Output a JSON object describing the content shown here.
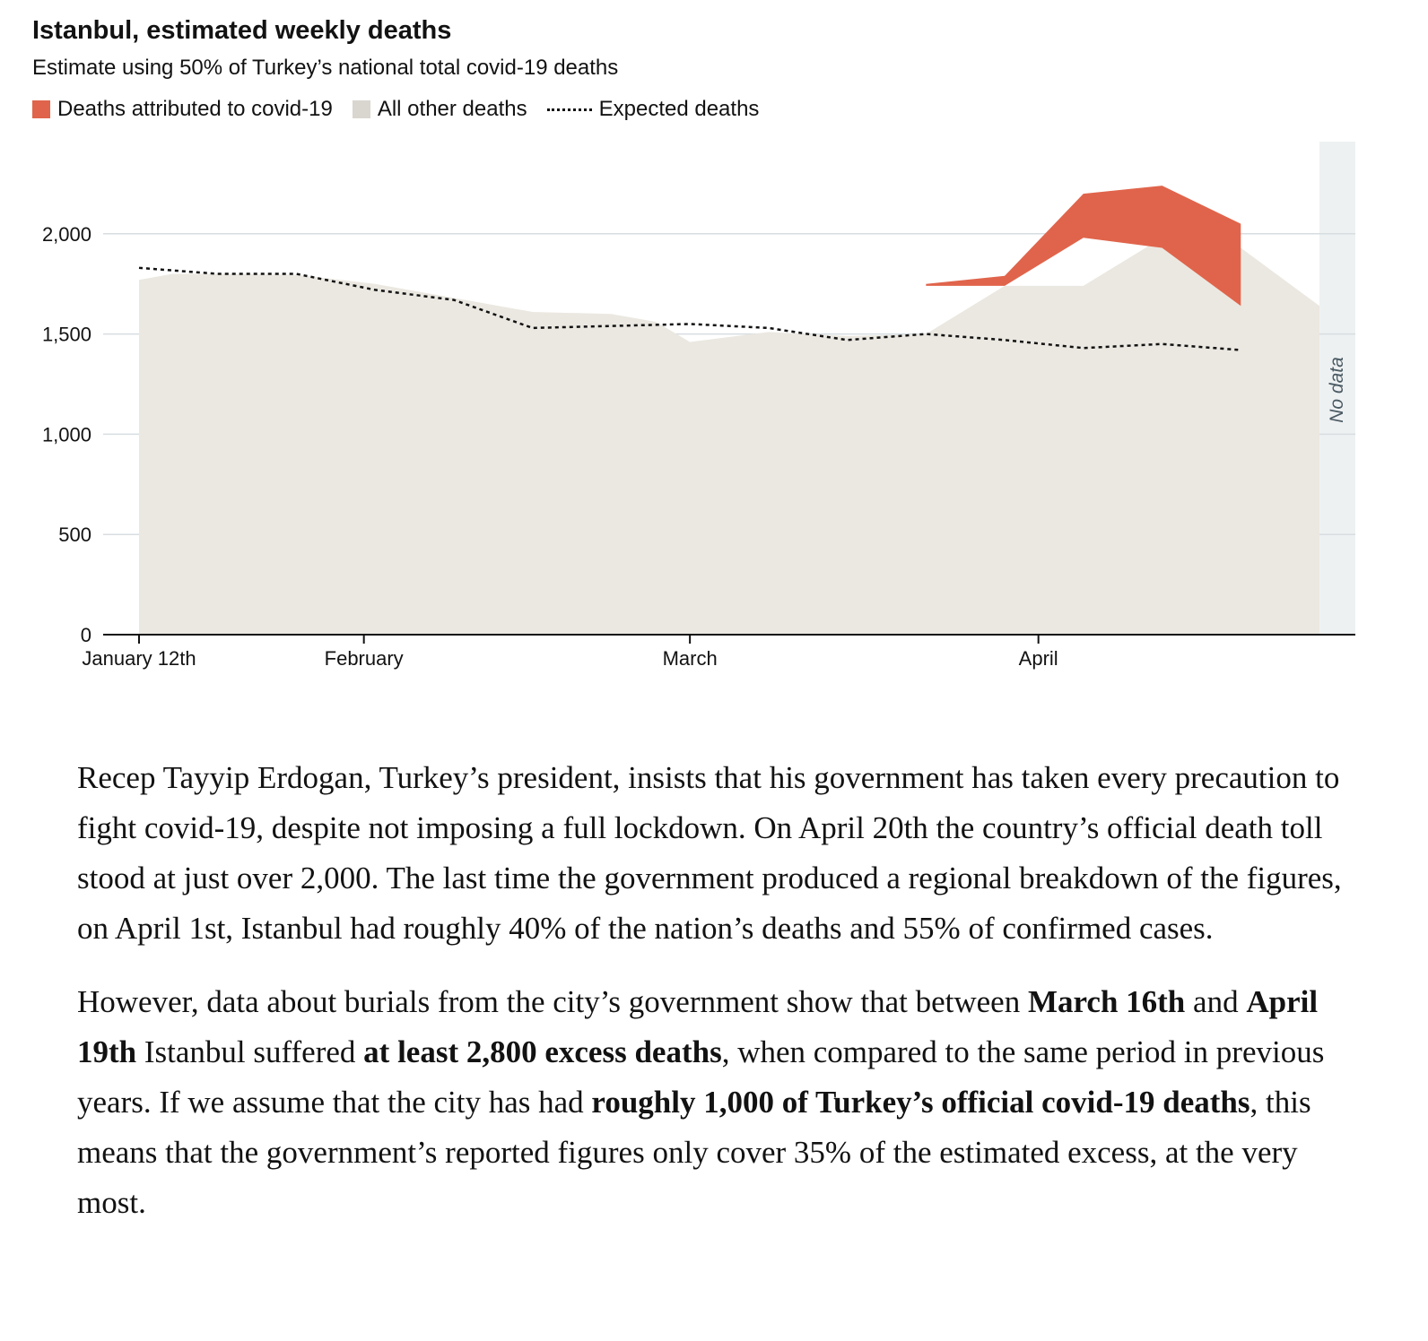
{
  "chart_data": {
    "type": "area",
    "title": "Istanbul, estimated weekly deaths",
    "subtitle": "Estimate using 50% of Turkey’s national total covid-19 deaths",
    "legend": [
      {
        "label": "Deaths attributed to covid-19",
        "color": "#e0644b",
        "marker": "square"
      },
      {
        "label": "All other deaths",
        "color": "#d9d6cf",
        "marker": "square"
      },
      {
        "label": "Expected deaths",
        "color": "#121212",
        "marker": "dotted-line"
      }
    ],
    "x_ticks": [
      {
        "label": "January 12th",
        "date": "2020-01-12"
      },
      {
        "label": "February",
        "date": "2020-02-01"
      },
      {
        "label": "March",
        "date": "2020-03-01"
      },
      {
        "label": "April",
        "date": "2020-04-01"
      }
    ],
    "y_ticks": [
      0,
      500,
      1000,
      1500,
      2000
    ],
    "ylim": [
      0,
      2450
    ],
    "xlim": [
      "2020-01-12",
      "2020-04-30"
    ],
    "grid": true,
    "no_data_label": "No data",
    "no_data_range": [
      "2020-04-27",
      "2020-04-30"
    ],
    "series": [
      {
        "name": "All other deaths",
        "points": [
          [
            "2020-01-12",
            1770
          ],
          [
            "2020-01-15",
            1800
          ],
          [
            "2020-01-19",
            1800
          ],
          [
            "2020-01-26",
            1795
          ],
          [
            "2020-02-02",
            1750
          ],
          [
            "2020-02-09",
            1680
          ],
          [
            "2020-02-16",
            1610
          ],
          [
            "2020-02-23",
            1600
          ],
          [
            "2020-02-27",
            1560
          ],
          [
            "2020-03-01",
            1460
          ],
          [
            "2020-03-08",
            1510
          ],
          [
            "2020-03-15",
            1490
          ],
          [
            "2020-03-22",
            1500
          ],
          [
            "2020-03-29",
            1740
          ],
          [
            "2020-04-05",
            1740
          ],
          [
            "2020-04-12",
            1980
          ],
          [
            "2020-04-19",
            1930
          ],
          [
            "2020-04-26",
            1640
          ]
        ]
      },
      {
        "name": "Deaths attributed to covid-19",
        "points": [
          [
            "2020-03-22",
            1750
          ],
          [
            "2020-03-29",
            1790
          ],
          [
            "2020-04-05",
            2200
          ],
          [
            "2020-04-12",
            2240
          ],
          [
            "2020-04-19",
            2050
          ]
        ],
        "baseline": [
          [
            "2020-03-22",
            1740
          ],
          [
            "2020-03-29",
            1740
          ],
          [
            "2020-04-05",
            1980
          ],
          [
            "2020-04-12",
            1930
          ],
          [
            "2020-04-19",
            1640
          ]
        ]
      },
      {
        "name": "Expected deaths",
        "points": [
          [
            "2020-01-12",
            1830
          ],
          [
            "2020-01-19",
            1800
          ],
          [
            "2020-01-26",
            1800
          ],
          [
            "2020-02-02",
            1720
          ],
          [
            "2020-02-09",
            1670
          ],
          [
            "2020-02-16",
            1530
          ],
          [
            "2020-02-23",
            1540
          ],
          [
            "2020-03-01",
            1550
          ],
          [
            "2020-03-08",
            1530
          ],
          [
            "2020-03-15",
            1470
          ],
          [
            "2020-03-22",
            1500
          ],
          [
            "2020-03-29",
            1470
          ],
          [
            "2020-04-05",
            1430
          ],
          [
            "2020-04-12",
            1450
          ],
          [
            "2020-04-19",
            1420
          ]
        ]
      }
    ]
  },
  "article": {
    "p1": "Recep Tayyip Erdogan, Turkey’s president, insists that his government has taken every precaution to fight covid-19, despite not imposing a full lockdown. On April 20th the country’s official death toll stood at just over 2,000. The last time the government produced a regional breakdown of the figures, on April 1st, Istanbul had roughly 40% of the nation’s deaths and 55% of confirmed cases.",
    "p2_a": "However, data about burials from the city’s government show that between ",
    "p2_b": "March 16th",
    "p2_c": " and ",
    "p2_d": "April 19th",
    "p2_e": " Istanbul suffered ",
    "p2_f": "at least 2,800 excess deaths",
    "p2_g": ", when compared to the same period in previous years. If we assume that the city has had ",
    "p2_h": "roughly 1,000 of Turkey’s official covid-19 deaths",
    "p2_i": ", this means that the government’s reported figures only cover 35% of the estimated excess, at the very most."
  }
}
